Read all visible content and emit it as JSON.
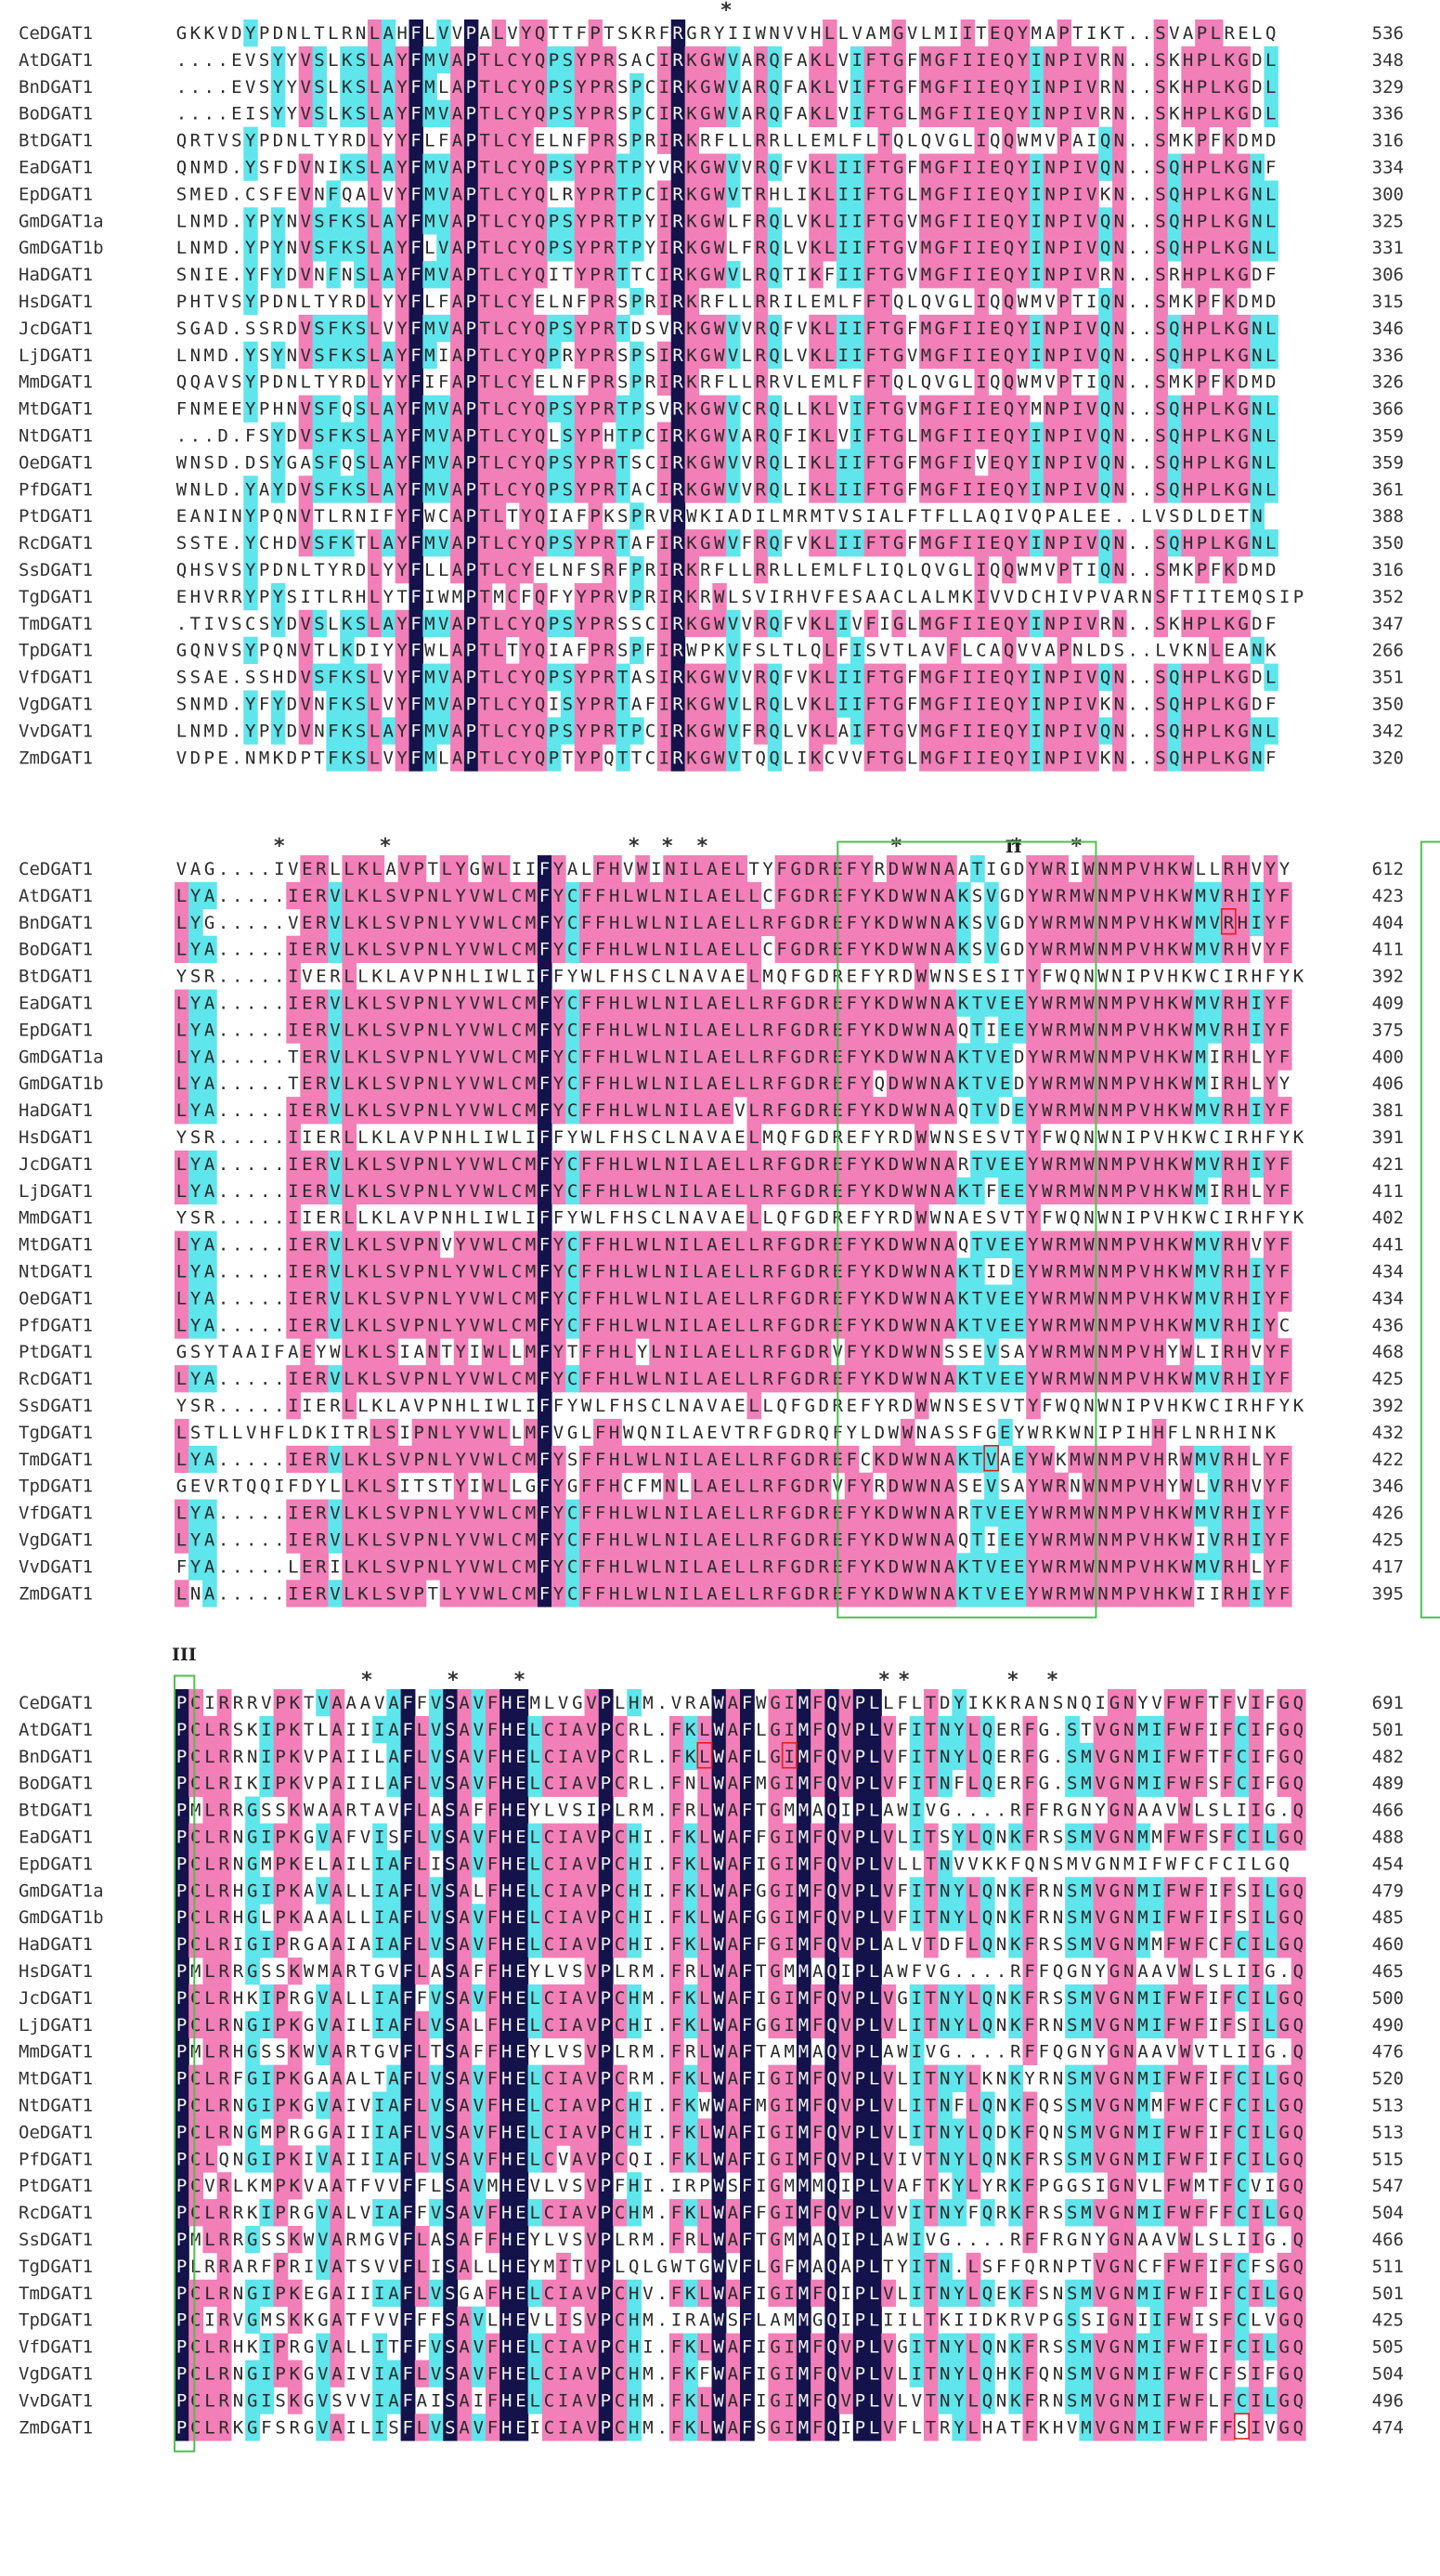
{
  "colors": {
    "identical": "#14124a",
    "high": "#f27fb8",
    "medium": "#5ee6ec",
    "box": "#4fc04f",
    "highlight_red": "#e02020"
  },
  "blocks": [
    {
      "motif_labels": [],
      "stars": [
        39.5
      ],
      "rows": [
        {
          "name": "CeDGAT1",
          "seq": "GKKVDYPDNLTLRNLAHFLVVPALVYQTTFPTSKRFRGRYIIWNVVHLLVAMGVLMIITEQYMAPTIKT..SVAPLRELQ",
          "end": "536"
        },
        {
          "name": "AtDGAT1",
          "seq": "....EVSYYVSLKSLAYFMVAPTLCYQPSYPRSACIRKGWVARQFAKLVIFTGFMGFIIEQYINPIVRN..SKHPLKGDL",
          "end": "348"
        },
        {
          "name": "BnDGAT1",
          "seq": "....EVSYYVSLKSLAYFMLAPTLCYQPSYPRSPCIRKGWVARQFAKLVIFTGFMGFIIEQYINPIVRN..SKHPLKGDL",
          "end": "329"
        },
        {
          "name": "BoDGAT1",
          "seq": "....EISYYVSLKSLAYFMVAPTLCYQPSYPRSPCIRKGWVARQFAKLVIFTGLMGFIIEQYINPIVRN..SKHPLKGDL",
          "end": "336"
        },
        {
          "name": "BtDGAT1",
          "seq": "QRTVSYPDNLTYRDLYYFLFAPTLCYELNFPRSPRIRKRFLLRRLLEMLFLTQLQVGLIQQWMVPAIQN..SMKPFKDMD",
          "end": "316"
        },
        {
          "name": "EaDGAT1",
          "seq": "QNMD.YSFDVNIKSLAYFMVAPTLCYQPSYPRTPYVRKGWVVRQFVKLIIFTGFMGFIIEQYINPIVQN..SQHPLKGNF",
          "end": "334"
        },
        {
          "name": "EpDGAT1",
          "seq": "SMED.CSFEVNFQALVYFMVAPTLCYQLRYPRTPCIRKGWVTRHLIKLIIFTGLMGFIIEQYINPIVKN..SQHPLKGNL",
          "end": "300"
        },
        {
          "name": "GmDGAT1a",
          "seq": "LNMD.YPYNVSFKSLAYFMVAPTLCYQPSYPRTPYIRKGWLFRQLVKLIIFTGVMGFIIEQYINPIVQN..SQHPLKGNL",
          "end": "325"
        },
        {
          "name": "GmDGAT1b",
          "seq": "LNMD.YPYNVSFKSLAYFLVAPTLCYQPSYPRTPYIRKGWLFRQLVKLIIFTGVMGFIIEQYINPIVQN..SQHPLKGNL",
          "end": "331"
        },
        {
          "name": "HaDGAT1",
          "seq": "SNIE.YFYDVNFNSLAYFMVAPTLCYQITYPRTTCIRKGWVLRQTIKFIIFTGVMGFIIEQYINPIVRN..SRHPLKGDF",
          "end": "306"
        },
        {
          "name": "HsDGAT1",
          "seq": "PHTVSYPDNLTYRDLYYFLFAPTLCYELNFPRSPRIRKRFLLRRILEMLFFTQLQVGLIQQWMVPTIQN..SMKPFKDMD",
          "end": "315"
        },
        {
          "name": "JcDGAT1",
          "seq": "SGAD.SSRDVSFKSLVYFMVAPTLCYQPSYPRTDSVRKGWVVRQFVKLIIFTGFMGFIIEQYINPIVQN..SQHPLKGNL",
          "end": "346"
        },
        {
          "name": "LjDGAT1",
          "seq": "LNMD.YSYNVSFKSLAYFMIAPTLCYQPRYPRSPSIRKGWVLRQLVKLIIFTGVMGFIIEQYINPIVQN..SQHPLKGNL",
          "end": "336"
        },
        {
          "name": "MmDGAT1",
          "seq": "QQAVSYPDNLTYRDLYYFIFAPTLCYELNFPRSPRIRKRFLLRRVLEMLFFTQLQVGLIQQWMVPTIQN..SMKPFKDMD",
          "end": "326"
        },
        {
          "name": "MtDGAT1",
          "seq": "FNMEEYPHNVSFQSLAYFMVAPTLCYQPSYPRTPSVRKGWVCRQLLKLVIFTGVMGFIIEQYMNPIVQN..SQHPLKGNL",
          "end": "366"
        },
        {
          "name": "NtDGAT1",
          "seq": "...D.FSYDVSFKSLAYFMVAPTLCYQLSYPHTPCIRKGWVARQFIKLVIFTGLMGFIIEQYINPIVQN..SQHPLKGNL",
          "end": "359"
        },
        {
          "name": "OeDGAT1",
          "seq": "WNSD.DSYGASFQSLAYFMVAPTLCYQPSYPRTSCIRKGWVVRQLIKLIIFTGFMGFIVEQYINPIVQN..SQHPLKGNL",
          "end": "359"
        },
        {
          "name": "PfDGAT1",
          "seq": "WNLD.YAYDVSFKSLAYFMVAPTLCYQPSYPRTACIRKGWVVRQLIKLIIFTGFMGFIIEQYINPIVQN..SQHPLKGNL",
          "end": "361"
        },
        {
          "name": "PtDGAT1",
          "seq": "EANINYPQNVTLRNIFYFWCAPTLTYQIAFPKSPRVRWKIADILMRMTVSIALFTFLLAQIVQPALEE..LVSDLDETN",
          "end": "388"
        },
        {
          "name": "RcDGAT1",
          "seq": "SSTE.YCHDVSFKTLAYFMVAPTLCYQPSYPRTAFIRKGWVFRQFVKLIIFTGFMGFIIEQYINPIVQN..SQHPLKGNL",
          "end": "350"
        },
        {
          "name": "SsDGAT1",
          "seq": "QHSVSYPDNLTYRDLYYFLLAPTLCYELNFSRFPRIRKRFLLRRLLEMLFLIQLQVGLIQQWMVPTIQN..SMKPFKDMD",
          "end": "316"
        },
        {
          "name": "TgDGAT1",
          "seq": "EHVRRYPYSITLRHLYTFIWMPTMCFQFYYPRVPRIRKRWLSVIRHVFESAACLALMKIVVDCHIVPVARNSFTITEMQSIP",
          "end": "352"
        },
        {
          "name": "TmDGAT1",
          "seq": ".TIVSCSYDVSLKSLAYFMVAPTLCYQPSYPRSSCIRKGWVVRQFVKLIVFIGLMGFIIEQYINPIVRN..SKHPLKGDF",
          "end": "347"
        },
        {
          "name": "TpDGAT1",
          "seq": "GQNVSYPQNVTLKDIYYFWLAPTLTYQIAFPRSPFIRWPKVFSLTLQLFISVTLAVFLCAQVVAPNLDS..LVKNLEANK",
          "end": "266"
        },
        {
          "name": "VfDGAT1",
          "seq": "SSAE.SSHDVSFKSLVYFMVAPTLCYQPSYPRTASIRKGWVVRQFVKLIIFTGFMGFIIEQYINPIVQN..SQHPLKGDL",
          "end": "351"
        },
        {
          "name": "VgDGAT1",
          "seq": "SNMD.YFYDVNFKSLVYFMVAPTLCYQISYPRTAFIRKGWVLRQLVKLIIFTGFMGFIIEQYINPIVKN..SQHPLKGDF",
          "end": "350"
        },
        {
          "name": "VvDGAT1",
          "seq": "LNMD.YPYDVNFKSLAYFMVAPTLCYQPSYPRTPCIRKGWVFRQLVKLAIFTGVMGFIIEQYINPIVQN..SQHPLKGNL",
          "end": "342"
        },
        {
          "name": "ZmDGAT1",
          "seq": "VDPE.NMKDPTFKSLVYFMLAPTLCYQPTYPQTTCIRKGWVTQQLIKCVVFTGLMGFIIEQYINPIVKN..SQHPLKGNF",
          "end": "320"
        }
      ]
    },
    {
      "motif_labels": [
        "II",
        "III"
      ],
      "stars": [
        7,
        14.6,
        32.4,
        34.8,
        37.3,
        51.2,
        59.8,
        64.1
      ],
      "rows": [
        {
          "name": "CeDGAT1",
          "seq": "VAG....IVERLLKLAVPTLYGWLIIFYALFHVWINILAELTYFGDREFYRDWWNAATIGDYWRIWNMPVHKWLLRHVYY",
          "end": "612"
        },
        {
          "name": "AtDGAT1",
          "seq": "LYA.....IERVLKLSVPNLYVWLCMFYCFFHLWLNILAELLCFGDREFYKDWWNAKSVGDYWRMWNMPVHKWMVRHIYF",
          "end": "423"
        },
        {
          "name": "BnDGAT1",
          "seq": "LYG.....VERVLKLSVPNLYVWLCMFYCFFHLWLNILAELLRFGDREFYKDWWNAKSVGDYWRMWNMPVHKWMVRHIYF",
          "end": "404"
        },
        {
          "name": "BoDGAT1",
          "seq": "LYA.....IERVLKLSVPNLYVWLCMFYCFFHLWLNILAELLCFGDREFYKDWWNAKSVGDYWRMWNMPVHKWMVRHVYF",
          "end": "411"
        },
        {
          "name": "BtDGAT1",
          "seq": "YSR.....IVERLLKLAVPNHLIWLIFFYWLFHSCLNAVAELMQFGDREFYRDWWNSESITYFWQNWNIPVHKWCIRHFYK",
          "end": "392"
        },
        {
          "name": "EaDGAT1",
          "seq": "LYA.....IERVLKLSVPNLYVWLCMFYCFFHLWLNILAELLRFGDREFYKDWWNAKTVEEYWRMWNMPVHKWMVRHIYF",
          "end": "409"
        },
        {
          "name": "EpDGAT1",
          "seq": "LYA.....IERVLKLSVPNLYVWLCMFYCFFHLWLNILAELLRFGDREFYKDWWNAQTIEEYWRMWNMPVHKWMVRHIYF",
          "end": "375"
        },
        {
          "name": "GmDGAT1a",
          "seq": "LYA.....TERVLKLSVPNLYVWLCMFYCFFHLWLNILAELLRFGDREFYKDWWNAKTVEDYWRMWNMPVHKWMIRHLYF",
          "end": "400"
        },
        {
          "name": "GmDGAT1b",
          "seq": "LYA.....TERVLKLSVPNLYVWLCMFYCFFHLWLNILAELLRFGDREFYQDWWNAKTVEDYWRMWNMPVHKWMIRHLYY",
          "end": "406"
        },
        {
          "name": "HaDGAT1",
          "seq": "LYA.....IERVLKLSVPNLYVWLCMFYCFFHLWLNILAEVLRFGDREFYKDWWNAQTVDEYWRMWNMPVHKWMVRHIYF",
          "end": "381"
        },
        {
          "name": "HsDGAT1",
          "seq": "YSR.....IIERLLKLAVPNHLIWLIFFYWLFHSCLNAVAELMQFGDREFYRDWWNSESVTYFWQNWNIPVHKWCIRHFYK",
          "end": "391"
        },
        {
          "name": "JcDGAT1",
          "seq": "LYA.....IERVLKLSVPNLYVWLCMFYCFFHLWLNILAELLRFGDREFYKDWWNARTVEEYWRMWNMPVHKWMVRHIYF",
          "end": "421"
        },
        {
          "name": "LjDGAT1",
          "seq": "LYA.....IERVLKLSVPNLYVWLCMFYCFFHLWLNILAELLRFGDREFYKDWWNAKTFEEYWRMWNMPVHKWMIRHLYF",
          "end": "411"
        },
        {
          "name": "MmDGAT1",
          "seq": "YSR.....IIERLLKLAVPNHLIWLIFFYWLFHSCLNAVAELLQFGDREFYRDWWNAESVTYFWQNWNIPVHKWCIRHFYK",
          "end": "402"
        },
        {
          "name": "MtDGAT1",
          "seq": "LYA.....IERVLKLSVPNVYVWLCMFYCFFHLWLNILAELLRFGDREFYKDWWNAQTVEEYWRMWNMPVHKWMVRHVYF",
          "end": "441"
        },
        {
          "name": "NtDGAT1",
          "seq": "LYA.....IERVLKLSVPNLYVWLCMFYCFFHLWLNILAELLRFGDREFYKDWWNAKTIDEYWRMWNMPVHKWMVRHIYF",
          "end": "434"
        },
        {
          "name": "OeDGAT1",
          "seq": "LYA.....IERVLKLSVPNLYVWLCMFYCFFHLWLNILAELLRFGDREFYKDWWNAKTVEEYWRMWNMPVHKWMVRHIYF",
          "end": "434"
        },
        {
          "name": "PfDGAT1",
          "seq": "LYA.....IERVLKLSVPNLYVWLCMFYCFFHLWLNILAELLRFGDREFYKDWWNAKTVEEYWRMWNMPVHKWMVRHIYC",
          "end": "436"
        },
        {
          "name": "PtDGAT1",
          "seq": "GSYTAAIFAEYWLKLSIANTYIWLLMFYTFFHLYLNILAELLRFGDRVFYKDWWNSSEVSAYWRMWNMPVHYWLIRHVYF",
          "end": "468"
        },
        {
          "name": "RcDGAT1",
          "seq": "LYA.....IERVLKLSVPNLYVWLCMFYCFFHLWLNILAELLRFGDREFYKDWWNAKTVEEYWRMWNMPVHKWMVRHIYF",
          "end": "425"
        },
        {
          "name": "SsDGAT1",
          "seq": "YSR.....IIERLLKLAVPNHLIWLIFFYWLFHSCLNAVAELLQFGDREFYRDWWNSESVTYFWQNWNIPVHKWCIRHFYK",
          "end": "392"
        },
        {
          "name": "TgDGAT1",
          "seq": "LSTLLVHFLDKITRLSIPNLYVWLLMFVGLFHWQNILAEVTRFGDRQFYLDWWNASSFGEYWRKWNIPIHHFLNRHINK",
          "end": "432"
        },
        {
          "name": "TmDGAT1",
          "seq": "LYA.....IERVLKLSVPNLYVWLCMFYSFFHLWLNILAELLRFGDREFCKDWWNAKTVAEYWKMWNMPVHRWMVRHLYF",
          "end": "422"
        },
        {
          "name": "TpDGAT1",
          "seq": "GEVRTQQIFDYLLKLSITSTYIWLLGFYGFFHCFMNLLAELLRFGDRVFYRDWWNASEVSAYWRNWNMPVHYWLVRHVYF",
          "end": "346"
        },
        {
          "name": "VfDGAT1",
          "seq": "LYA.....IERVLKLSVPNLYVWLCMFYCFFHLWLNILAELLRFGDREFYKDWWNARTVEEYWRMWNMPVHKWMVRHIYF",
          "end": "426"
        },
        {
          "name": "VgDGAT1",
          "seq": "LYA.....IERVLKLSVPNLYVWLCMFYCFFHLWLNILAELLRFGDREFYKDWWNAQTIEEYWRMWNMPVHKWIVRHIYF",
          "end": "425"
        },
        {
          "name": "VvDGAT1",
          "seq": "FYA.....LERILKLSVPNLYVWLCMFYCFFHLWLNILAELLRFGDREFYKDWWNAKTVEEYWRMWNMPVHKWMVRHLYF",
          "end": "417"
        },
        {
          "name": "ZmDGAT1",
          "seq": "LNA.....IERVLKLSVPTLYVWLCMFYCFFHLWLNILAELLRFGDREFYKDWWNAKTVEEYWRMWNMPVHKWIIRHIYF",
          "end": "395"
        }
      ]
    },
    {
      "motif_labels": [
        "III"
      ],
      "stars": [
        13.1,
        19.2,
        23.9,
        49.7,
        51.1,
        58.8,
        61.6
      ],
      "rows": [
        {
          "name": "CeDGAT1",
          "seq": "PCIRRRVPKTVAAAVAFFVSAVFHEMLVGVPLHM.VRAWAFWGIMFQVPLLFLTDYIKKRANSNQIGNYVFWFTFVIFGQ",
          "end": "691"
        },
        {
          "name": "AtDGAT1",
          "seq": "PCLRSKIPKTLAIIIAFLVSAVFHELCIAVPCRL.FKLWAFLGIMFQVPLVFITNYLQERFG.STVGNMIFWFIFCIFGQ",
          "end": "501"
        },
        {
          "name": "BnDGAT1",
          "seq": "PCLRRNIPKVPAIILAFLVSAVFHELCIAVPCRL.FKLWAFLGIMFQVPLVFITNYLQERFG.SMVGNMIFWFTFCIFGQ",
          "end": "482"
        },
        {
          "name": "BoDGAT1",
          "seq": "PCLRIKIPKVPAIILAFLVSAVFHELCIAVPCRL.FNLWAFMGIMFQVPLVFITNFLQERFG.SMVGNMIFWFSFCIFGQ",
          "end": "489"
        },
        {
          "name": "BtDGAT1",
          "seq": "PMLRRGSSKWAARTAVFLASAFFHEYLVSIPLRM.FRLWAFTGMMAQIPLAWIVG....RFFRGNYGNAAVWLSLIIG.Q",
          "end": "466"
        },
        {
          "name": "EaDGAT1",
          "seq": "PCLRNGIPKGVAFVISFLVSAVFHELCIAVPCHI.FKLWAFFGIMFQVPLVLITSYLQNKFRSSMVGNMMFWFSFCILGQ",
          "end": "488"
        },
        {
          "name": "EpDGAT1",
          "seq": "PCLRNGMPKELAILIAFLISAVFHELCIAVPCHI.FKLWAFIGIMFQVPLVLLTNVVKKFQNSMVGNMIFWFCFCILGQ",
          "end": "454"
        },
        {
          "name": "GmDGAT1a",
          "seq": "PCLRHGIPKAVALLIAFLVSALFHELCIAVPCHI.FKLWAFGGIMFQVPLVFITNYLQNKFRNSMVGNMIFWFIFSILGQ",
          "end": "479"
        },
        {
          "name": "GmDGAT1b",
          "seq": "PCLRHGLPKAAALLIAFLVSAVFHELCIAVPCHI.FKLWAFGGIMFQVPLVFITNYLQNKFRNSMVGNMIFWFIFSILGQ",
          "end": "485"
        },
        {
          "name": "HaDGAT1",
          "seq": "PCLRIGIPRGAAIAIAFLVSAVFHELCIAVPCHI.FKLWAFFGIMFQVPLALVTDFLQNKFRSSMVGNMMFWFCFCILGQ",
          "end": "460"
        },
        {
          "name": "HsDGAT1",
          "seq": "PMLRRGSSKWMARTGVFLASAFFHEYLVSVPLRM.FRLWAFTGMMAQIPLAWFVG....RFFQGNYGNAAVWLSLIIG.Q",
          "end": "465"
        },
        {
          "name": "JcDGAT1",
          "seq": "PCLRHKIPRGVALLIAFFVSAVFHELCIAVPCHM.FKLWAFIGIMFQVPLVGITNYLQNKFRSSMVGNMIFWFIFCILGQ",
          "end": "500"
        },
        {
          "name": "LjDGAT1",
          "seq": "PCLRNGIPKGVAILIAFLVSALFHELCIAVPCHI.FKLWAFGGIMFQVPLVLITNYLQNKFRNSMVGNMIFWFIFSILGQ",
          "end": "490"
        },
        {
          "name": "MmDGAT1",
          "seq": "PMLRHGSSKWVARTGVFLTSAFFHEYLVSVPLRM.FRLWAFTAMMAQVPLAWIVG....RFFQGNYGNAAVWVTLIIG.Q",
          "end": "476"
        },
        {
          "name": "MtDGAT1",
          "seq": "PCLRFGIPKGAAALTAFLVSAVFHELCIAVPCRM.FKLWAFIGIMFQVPLVLITNYLKNKYRNSMVGNMIFWFIFCILGQ",
          "end": "520"
        },
        {
          "name": "NtDGAT1",
          "seq": "PCLRNGIPKGVAIVIAFLVSAVFHELCIAVPCHI.FKWWAFMGIMFQVPLVLITNFLQNKFQSSMVGNMMFWFCFCILGQ",
          "end": "513"
        },
        {
          "name": "OeDGAT1",
          "seq": "PCLRNGMPRGGAIIIAFLVSAVFHELCIAVPCHI.FKLWAFIGIMFQVPLVLITNYLQDKFQNSMVGNMIFWFIFCILGQ",
          "end": "513"
        },
        {
          "name": "PfDGAT1",
          "seq": "PCLQNGIPKIVAIIIAFLVSAVFHELCVAVPCQI.FKLWAFIGIMFQVPLVIVTNYLQNKFRSSMVGNMIFWFIFCILGQ",
          "end": "515"
        },
        {
          "name": "PtDGAT1",
          "seq": "PCVRLKMPKVAATFVVFFLSAVMHEVLVSVPFHI.IRPWSFIGMMMQIPLVAFTKYLYRKFPGGSIGNVLFWMTFCVIGQ",
          "end": "547"
        },
        {
          "name": "RcDGAT1",
          "seq": "PCLRRKIPRGVALVIAFFVSAVFHELCIAVPCHM.FKLWAFFGIMFQVPLVVITNYFQRKFRSSMVGNMIFWFFFCILGQ",
          "end": "504"
        },
        {
          "name": "SsDGAT1",
          "seq": "PMLRRGSSKWVARMGVFLASAFFHEYLVSVPLRM.FRLWAFTGMMAQIPLAWIVG....RFFRGNYGNAAVWLSLIIG.Q",
          "end": "466"
        },
        {
          "name": "TgDGAT1",
          "seq": "PLRRARFPRIVATSVVFLISALLHEYMITVPLQLGWTGWVFLGFMAQAPLTYITN.LSFFQRNPTVGNCFFWFIFCFSGQ",
          "end": "511"
        },
        {
          "name": "TmDGAT1",
          "seq": "PCLRNGIPKEGAIIIAFLVSGAFHELCIAVPCHV.FKLWAFIGIMFQIPLVLITNYLQEKFSNSMVGNMIFWFIFCILGQ",
          "end": "501"
        },
        {
          "name": "TpDGAT1",
          "seq": "PCIRVGMSKKGATFVVFFFSAVLHEVLISVPCHM.IRAWSFLAMMGQIPLIILTKIIDKRVPGSSIGNIIFWISFCLVGQ",
          "end": "425"
        },
        {
          "name": "VfDGAT1",
          "seq": "PCLRHKIPRGVALLITFFVSAVFHELCIAVPCHI.FKLWAFIGIMFQVPLVGITNYLQNKFRSSMVGNMIFWFIFCILGQ",
          "end": "505"
        },
        {
          "name": "VgDGAT1",
          "seq": "PCLRNGIPKGVAIVIAFLVSAVFHELCIAVPCHM.FKFWAFIGIMFQVPLVLITNYLQHKFQNSMVGNMIFWFCFSIFGQ",
          "end": "504"
        },
        {
          "name": "VvDGAT1",
          "seq": "PCLRNGISKGVSVVIAFAISAIFHELCIAVPCHM.FKLWAFIGIMFQVPLVLVTNYLQNKFRNSMVGNMIFWFLFCILGQ",
          "end": "496"
        },
        {
          "name": "ZmDGAT1",
          "seq": "PCLRKGFSRGVAILISFLVSAVFHEICIAVPCHM.FKLWAFSGIMFQIPLVFLTRYLHATFKHVMVGNMIFWFFFSIVGQ",
          "end": "474"
        }
      ]
    }
  ]
}
